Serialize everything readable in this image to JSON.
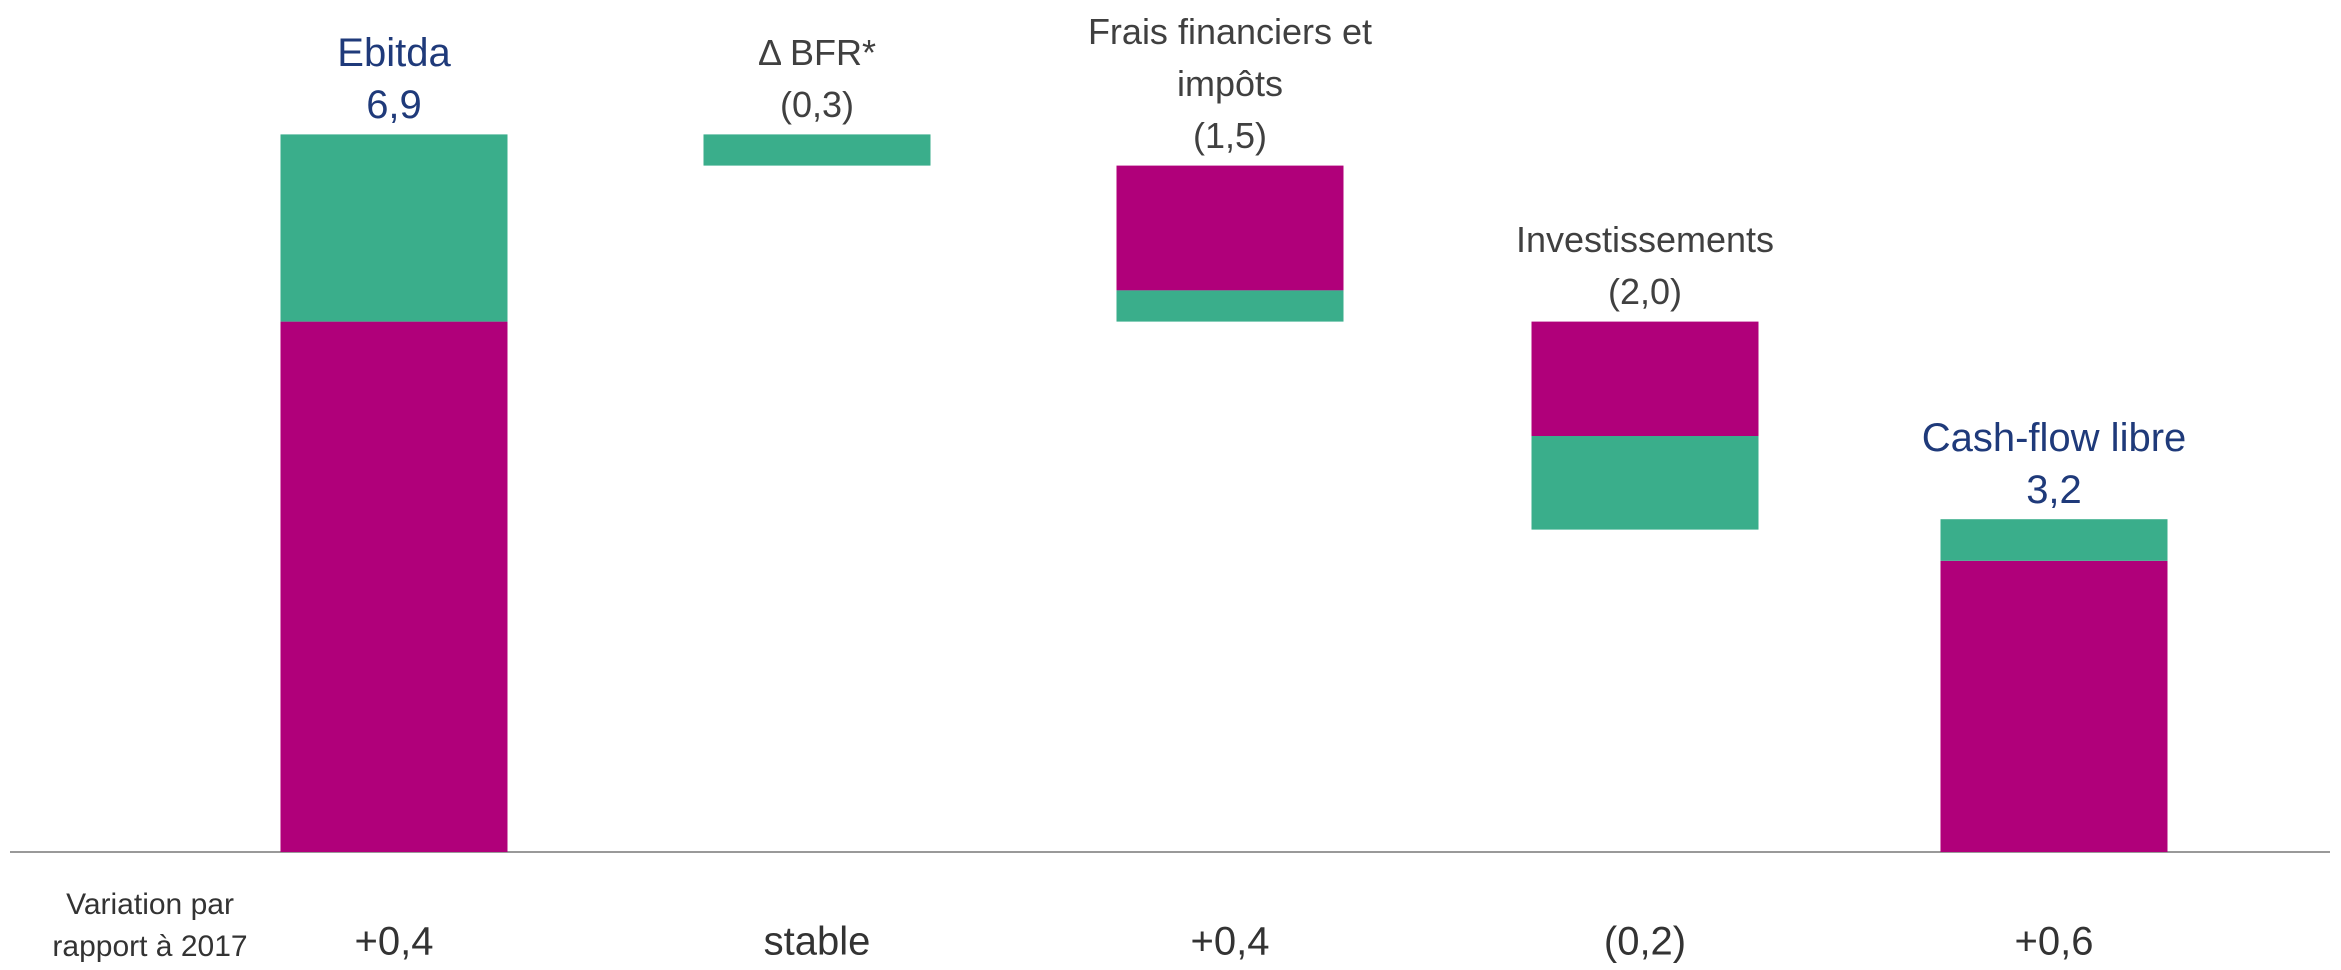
{
  "chart_data": {
    "type": "waterfall",
    "categories": [
      "Ebitda",
      "Δ BFR*",
      [
        "Frais financiers et",
        "impôts"
      ],
      "Investissements",
      "Cash-flow libre"
    ],
    "measure": [
      "total",
      "relative",
      "relative",
      "relative",
      "total"
    ],
    "totals": [
      6.9,
      -0.3,
      -1.5,
      -2.0,
      3.2
    ],
    "value_labels": [
      "6,9",
      "(0,3)",
      "(1,5)",
      "(2,0)",
      "3,2"
    ],
    "series": [
      {
        "color": "#b0007a",
        "values": [
          5.1,
          0,
          -1.2,
          -1.1,
          2.8
        ]
      },
      {
        "color": "#3aae8b",
        "values": [
          1.8,
          -0.3,
          -0.3,
          -0.9,
          0.4
        ]
      }
    ],
    "total_label_color": "#1f3a7a",
    "relative_label_color": "#404040",
    "variation": {
      "label": [
        "Variation par",
        "rapport à 2017"
      ],
      "values": [
        "+0,4",
        "stable",
        "+0,4",
        "(0,2)",
        "+0,6"
      ]
    }
  }
}
